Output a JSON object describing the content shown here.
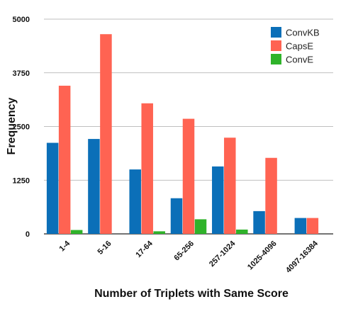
{
  "chart_data": {
    "type": "bar",
    "xlabel": "Number of Triplets with Same Score",
    "ylabel": "Frequency",
    "ylim": [
      0,
      5000
    ],
    "yticks": [
      "0",
      "1250",
      "2500",
      "3750",
      "5000"
    ],
    "ytick_values": [
      0,
      1250,
      2500,
      3750,
      5000
    ],
    "grid": true,
    "legend_position": "top-right",
    "categories": [
      "1-4",
      "5-16",
      "17-64",
      "65-256",
      "257-1024",
      "1025-4096",
      "4097-16384"
    ],
    "series": [
      {
        "name": "ConvKB",
        "color": "#0b6fb8",
        "values": [
          2120,
          2210,
          1500,
          830,
          1570,
          530,
          370
        ]
      },
      {
        "name": "CapsE",
        "color": "#ff6352",
        "values": [
          3450,
          4650,
          3040,
          2680,
          2240,
          1770,
          370
        ]
      },
      {
        "name": "ConvE",
        "color": "#2fb32a",
        "values": [
          90,
          0,
          60,
          340,
          100,
          0,
          0
        ]
      }
    ]
  }
}
